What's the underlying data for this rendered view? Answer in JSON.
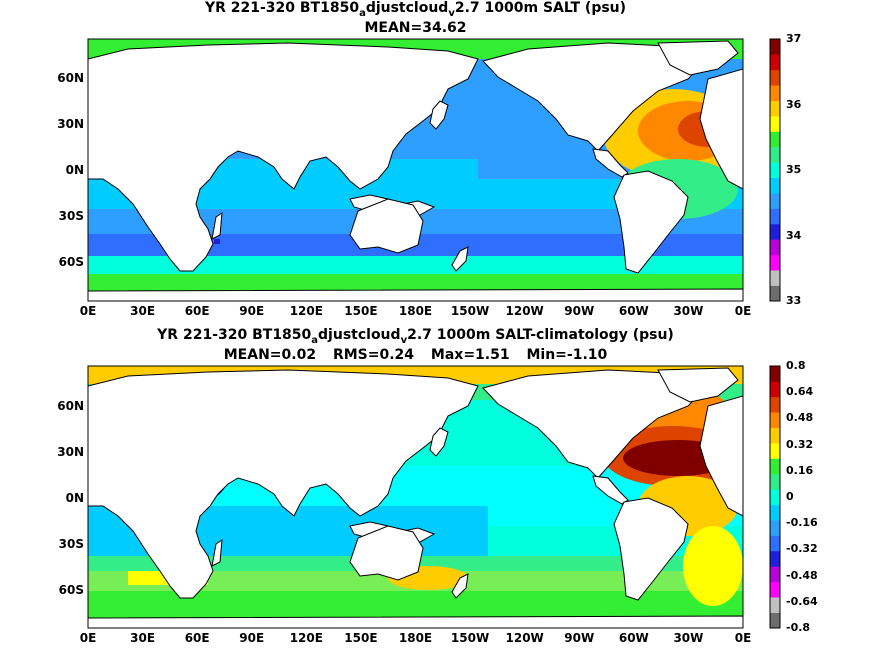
{
  "panels": [
    {
      "title_parts": [
        "YR 221-320 BT1850",
        "a",
        "djustcloud",
        "v",
        "2.7 1000m SALT (psu)"
      ],
      "stats": [
        "MEAN=34.62"
      ],
      "lat_labels": [
        "60N",
        "30N",
        "0N",
        "30S",
        "60S"
      ],
      "lon_labels": [
        "0E",
        "30E",
        "60E",
        "90E",
        "120E",
        "150E",
        "180E",
        "150W",
        "120W",
        "90W",
        "60W",
        "30W",
        "0E"
      ],
      "colorbar_labels": [
        "37",
        "36",
        "35",
        "34",
        "33"
      ],
      "colors": [
        "#6d6d6d",
        "#c0c0c0",
        "#ff00ff",
        "#b800d8",
        "#1f1fd9",
        "#2f6fff",
        "#2f9fff",
        "#00ccff",
        "#00ffdd",
        "#33ee88",
        "#33ee33",
        "#ffff00",
        "#ffcc00",
        "#ff8800",
        "#dd4400",
        "#cc0000",
        "#800000"
      ]
    },
    {
      "title_parts": [
        "YR 221-320 BT1850",
        "a",
        "djustcloud",
        "v",
        "2.7 1000m SALT-climatology (psu)"
      ],
      "stats": [
        "MEAN=0.02",
        "RMS=0.24",
        "Max=1.51",
        "Min=-1.10"
      ],
      "lat_labels": [
        "60N",
        "30N",
        "0N",
        "30S",
        "60S"
      ],
      "lon_labels": [
        "0E",
        "30E",
        "60E",
        "90E",
        "120E",
        "150E",
        "180E",
        "150W",
        "120W",
        "90W",
        "60W",
        "30W",
        "0E"
      ],
      "colorbar_labels": [
        "0.8",
        "0.64",
        "0.48",
        "0.32",
        "0.16",
        "0",
        "-0.16",
        "-0.32",
        "-0.48",
        "-0.64",
        "-0.8"
      ],
      "colors": [
        "#6d6d6d",
        "#c0c0c0",
        "#ff00ff",
        "#b800d8",
        "#1f1fd9",
        "#2f6fff",
        "#2f9fff",
        "#00ccff",
        "#00ffdd",
        "#33ee88",
        "#33ee33",
        "#ffff00",
        "#ffcc00",
        "#ff8800",
        "#dd4400",
        "#cc0000",
        "#800000"
      ]
    }
  ]
}
